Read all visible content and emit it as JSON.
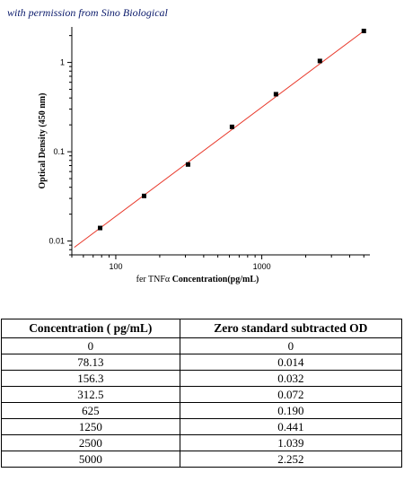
{
  "header": {
    "permission_text": "with permission from Sino Biological"
  },
  "chart_data": {
    "type": "scatter",
    "title": "",
    "xlabel": "Concentration(pg/mL)",
    "xlabel_prefix": "fer TNFα",
    "ylabel": "Optical Density (450 nm)",
    "x_scale": "log",
    "y_scale": "log",
    "xlim": [
      50,
      5500
    ],
    "ylim": [
      0.007,
      2.5
    ],
    "x_ticks": [
      100,
      1000
    ],
    "x_tick_labels": [
      "100",
      "1000"
    ],
    "y_ticks": [
      0.01,
      0.1,
      1
    ],
    "y_tick_labels": [
      "0.01",
      "0.1",
      "1"
    ],
    "grid": false,
    "series": [
      {
        "x": [
          78.13,
          156.3,
          312.5,
          625,
          1250,
          2500,
          5000
        ],
        "y": [
          0.014,
          0.032,
          0.072,
          0.19,
          0.441,
          1.039,
          2.252
        ],
        "marker_color": "#000000"
      }
    ],
    "fit_line": {
      "x": [
        52,
        5000
      ],
      "y": [
        0.0085,
        2.252
      ],
      "color": "#e8392b"
    }
  },
  "table": {
    "headers": [
      "Concentration ( pg/mL)",
      "Zero standard subtracted OD"
    ],
    "rows": [
      [
        "0",
        "0"
      ],
      [
        "78.13",
        "0.014"
      ],
      [
        "156.3",
        "0.032"
      ],
      [
        "312.5",
        "0.072"
      ],
      [
        "625",
        "0.190"
      ],
      [
        "1250",
        "0.441"
      ],
      [
        "2500",
        "1.039"
      ],
      [
        "5000",
        "2.252"
      ]
    ]
  }
}
